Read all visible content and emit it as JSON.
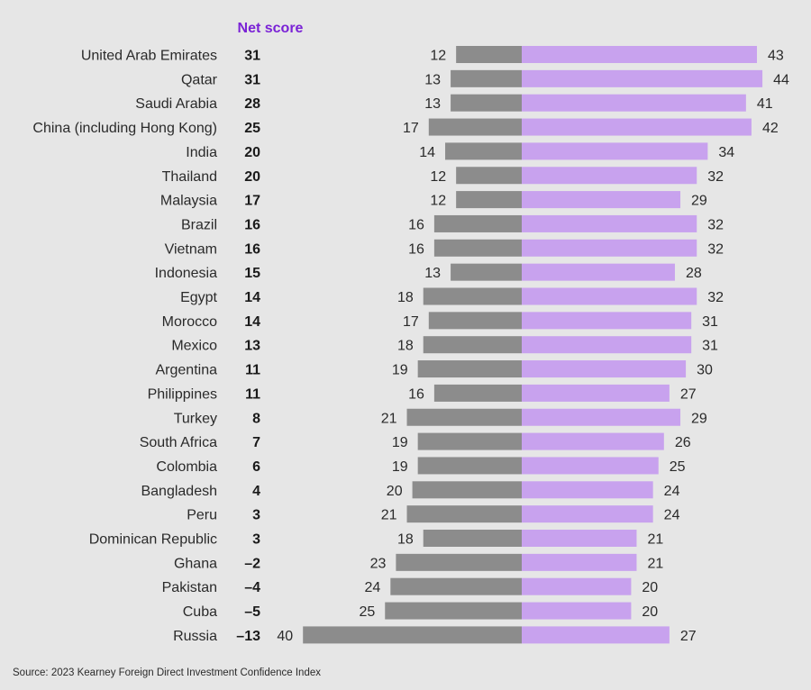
{
  "chart_data": {
    "type": "bar",
    "subtype": "diverging-horizontal",
    "title": "",
    "net_score_header": "Net score",
    "xlabel": "",
    "ylabel": "",
    "grid": false,
    "categories": [
      "United Arab Emirates",
      "Qatar",
      "Saudi Arabia",
      "China (including Hong Kong)",
      "India",
      "Thailand",
      "Malaysia",
      "Brazil",
      "Vietnam",
      "Indonesia",
      "Egypt",
      "Morocco",
      "Mexico",
      "Argentina",
      "Philippines",
      "Turkey",
      "South Africa",
      "Colombia",
      "Bangladesh",
      "Peru",
      "Dominican Republic",
      "Ghana",
      "Pakistan",
      "Cuba",
      "Russia"
    ],
    "net_score_labels": [
      "31",
      "31",
      "28",
      "25",
      "20",
      "20",
      "17",
      "16",
      "16",
      "15",
      "14",
      "14",
      "13",
      "11",
      "11",
      "8",
      "7",
      "6",
      "4",
      "3",
      "3",
      "–2",
      "–4",
      "–5",
      "–13"
    ],
    "series": [
      {
        "name": "negative",
        "color": "#8c8c8c",
        "direction": "left",
        "values": [
          12,
          13,
          13,
          17,
          14,
          12,
          12,
          16,
          16,
          13,
          18,
          17,
          18,
          19,
          16,
          21,
          19,
          19,
          20,
          21,
          18,
          23,
          24,
          25,
          40
        ]
      },
      {
        "name": "positive",
        "color": "#c8a2ee",
        "direction": "right",
        "values": [
          43,
          44,
          41,
          42,
          34,
          32,
          29,
          32,
          32,
          28,
          32,
          31,
          31,
          30,
          27,
          29,
          26,
          25,
          24,
          24,
          21,
          21,
          20,
          20,
          27
        ]
      }
    ],
    "xlim": [
      -40,
      44
    ]
  },
  "source": "Source: 2023 Kearney Foreign Direct Investment Confidence Index",
  "colors": {
    "header": "#7a22d6",
    "negative": "#8c8c8c",
    "positive": "#c8a2ee",
    "background": "#e6e6e6"
  }
}
